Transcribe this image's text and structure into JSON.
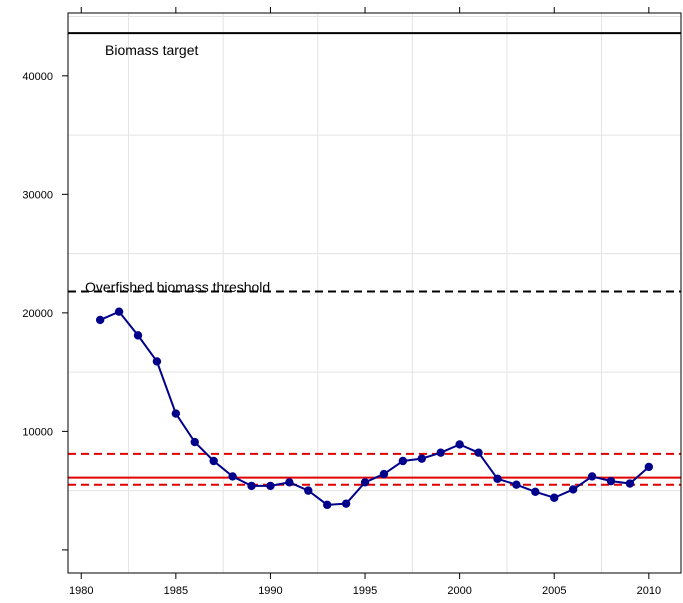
{
  "chart_data": {
    "type": "line",
    "title": "",
    "xlabel": "",
    "ylabel": "",
    "xlim": [
      1979.3,
      2011.7
    ],
    "ylim": [
      -1950,
      45300
    ],
    "grid": true,
    "x_ticks": [
      1980,
      1985,
      1990,
      1995,
      2000,
      2005,
      2010
    ],
    "y_ticks": [
      10000,
      20000,
      30000,
      40000
    ],
    "series": [
      {
        "x": [
          1981,
          1982,
          1983,
          1984,
          1985,
          1986,
          1987,
          1988,
          1989,
          1990,
          1991,
          1992,
          1993,
          1994,
          1995,
          1996,
          1997,
          1998,
          1999,
          2000,
          2001,
          2002,
          2003,
          2004,
          2005,
          2006,
          2007,
          2008,
          2009,
          2010
        ],
        "values": [
          19400,
          20100,
          18100,
          15900,
          11500,
          9100,
          7500,
          6200,
          5400,
          5400,
          5700,
          5000,
          3800,
          3900,
          5700,
          6400,
          7500,
          7700,
          8200,
          8900,
          8200,
          6000,
          5500,
          4900,
          4400,
          5100,
          6200,
          5800,
          5600,
          7000
        ],
        "color": "#00008b"
      }
    ],
    "reference_lines": [
      {
        "label": "Biomass target",
        "value": 43600,
        "style": "solid",
        "color": "#000000"
      },
      {
        "label": "Overfished biomass threshold",
        "value": 21800,
        "style": "dashed",
        "color": "#000000"
      },
      {
        "label": "",
        "value": 6100,
        "style": "solid",
        "color": "#e00000"
      },
      {
        "label": "",
        "value": 8100,
        "style": "dashed",
        "color": "#e00000"
      },
      {
        "label": "",
        "value": 5500,
        "style": "dashed",
        "color": "#e00000"
      }
    ]
  }
}
